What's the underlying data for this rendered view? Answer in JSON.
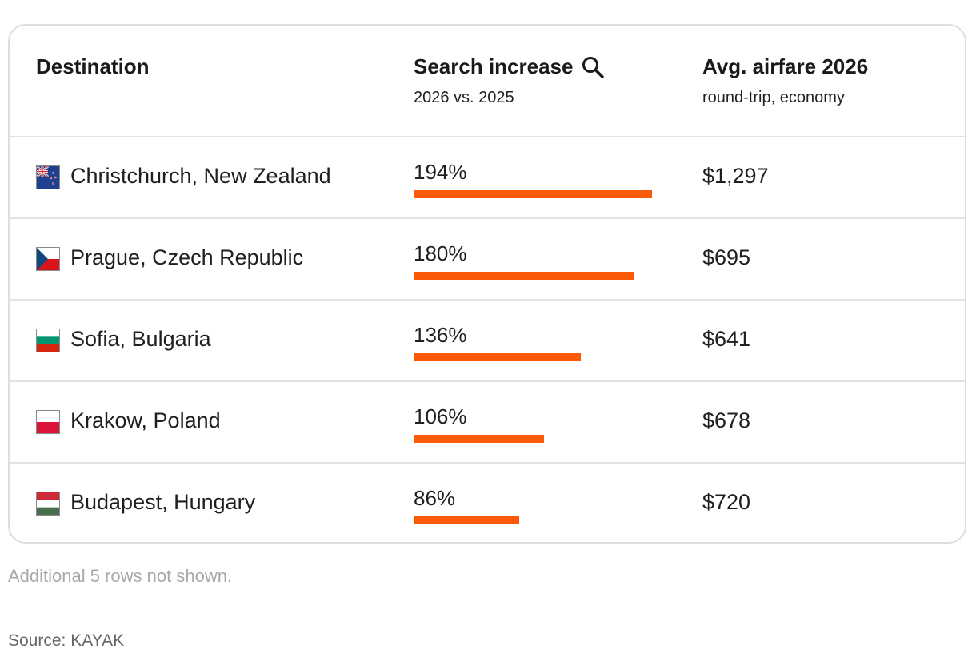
{
  "header": {
    "destination": "Destination",
    "search_title": "Search increase",
    "search_sub": "2026 vs. 2025",
    "fare_title": "Avg. airfare 2026",
    "fare_sub": "round-trip, economy"
  },
  "chart_data": {
    "type": "table",
    "columns": [
      "Destination",
      "Search increase",
      "Avg. airfare 2026"
    ],
    "bar_max": 194,
    "rows": [
      {
        "destination": "Christchurch, New Zealand",
        "flag": "new-zealand-flag-icon",
        "search_increase": 194,
        "search_label": "194%",
        "airfare": "$1,297"
      },
      {
        "destination": "Prague, Czech Republic",
        "flag": "czech-flag-icon",
        "search_increase": 180,
        "search_label": "180%",
        "airfare": "$695"
      },
      {
        "destination": "Sofia, Bulgaria",
        "flag": "bulgaria-flag-icon",
        "search_increase": 136,
        "search_label": "136%",
        "airfare": "$641"
      },
      {
        "destination": "Krakow, Poland",
        "flag": "poland-flag-icon",
        "search_increase": 106,
        "search_label": "106%",
        "airfare": "$678"
      },
      {
        "destination": "Budapest, Hungary",
        "flag": "hungary-flag-icon",
        "search_increase": 86,
        "search_label": "86%",
        "airfare": "$720"
      }
    ]
  },
  "colors": {
    "bar": "#fa5a05"
  },
  "footer": {
    "note": "Additional 5 rows not shown.",
    "source": "Source: KAYAK"
  }
}
